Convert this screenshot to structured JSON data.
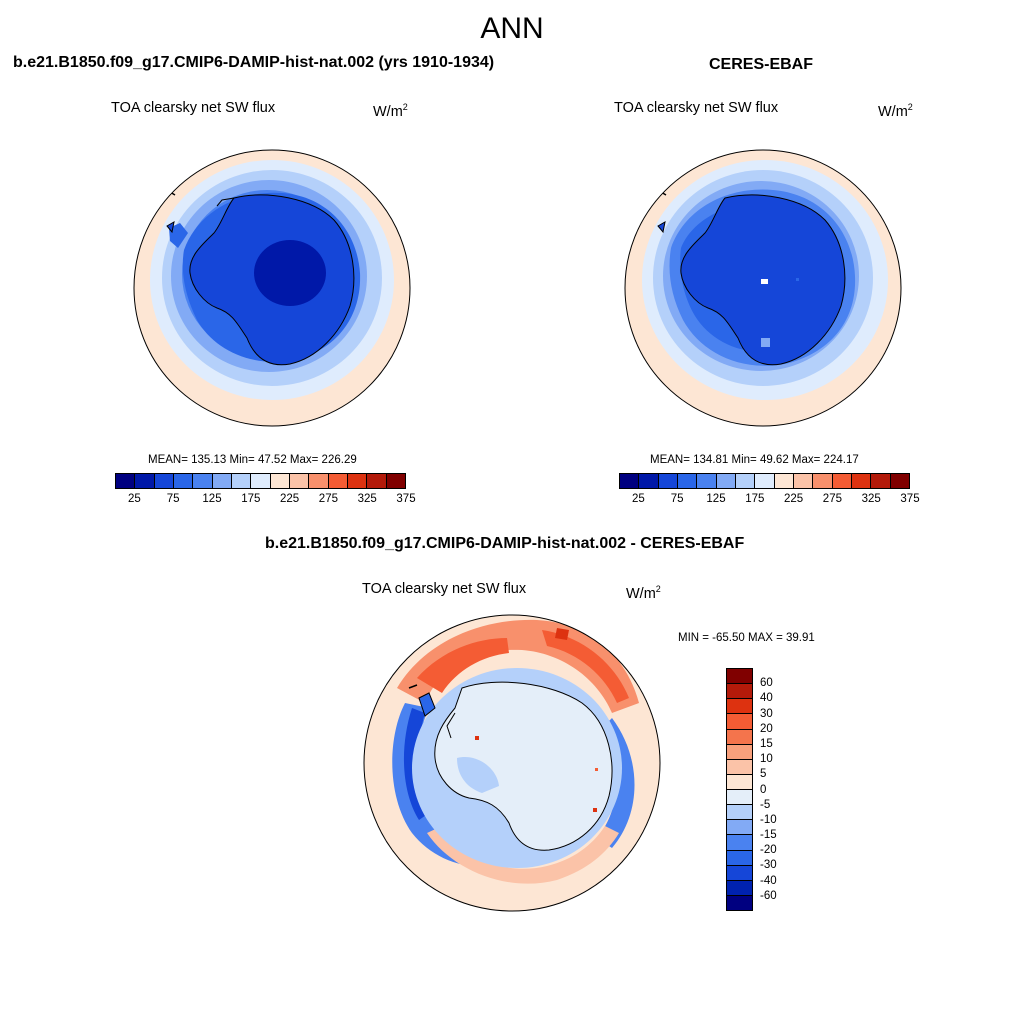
{
  "main_title": "ANN",
  "panels": {
    "model": {
      "title": "b.e21.B1850.f09_g17.CMIP6-DAMIP-hist-nat.002 (yrs 1910-1934)",
      "variable": "TOA clearsky net SW flux",
      "units_base": "W/m",
      "units_exp": "2",
      "stats": "MEAN= 135.13  Min=  47.52  Max= 226.29"
    },
    "obs": {
      "title": "CERES-EBAF",
      "variable": "TOA clearsky net SW flux",
      "units_base": "W/m",
      "units_exp": "2",
      "stats": "MEAN= 134.81  Min=  49.62  Max= 224.17"
    },
    "diff": {
      "title": "b.e21.B1850.f09_g17.CMIP6-DAMIP-hist-nat.002 - CERES-EBAF",
      "variable": "TOA clearsky net SW flux",
      "units_base": "W/m",
      "units_exp": "2",
      "stats": "MIN = -65.50 MAX =  39.91"
    }
  },
  "chart_data": {
    "type": "heatmap",
    "projection": "south-polar-stereographic",
    "abs_colorbar": {
      "colors": [
        "#000080",
        "#0018a8",
        "#1546d8",
        "#2a66e8",
        "#4a82f0",
        "#82aaf5",
        "#b4d0fa",
        "#dfecfd",
        "#fde6d4",
        "#fbc3a8",
        "#f8906c",
        "#f45c34",
        "#dd3210",
        "#b31a0a",
        "#800000"
      ],
      "tick_labels": [
        "25",
        "75",
        "125",
        "175",
        "225",
        "275",
        "325",
        "375"
      ]
    },
    "diff_colorbar": {
      "colors": [
        "#000080",
        "#0022b0",
        "#1546d8",
        "#2a66e8",
        "#4a82f0",
        "#82aaf5",
        "#b4d0fa",
        "#e4eef9",
        "#fde6d4",
        "#fbc3a8",
        "#f8a07c",
        "#f4744c",
        "#f45c34",
        "#dd3210",
        "#b31a0a",
        "#800000"
      ],
      "tick_labels": [
        "-60",
        "-40",
        "-30",
        "-20",
        "-15",
        "-10",
        "-5",
        "0",
        "5",
        "10",
        "15",
        "20",
        "30",
        "40",
        "60"
      ]
    }
  }
}
